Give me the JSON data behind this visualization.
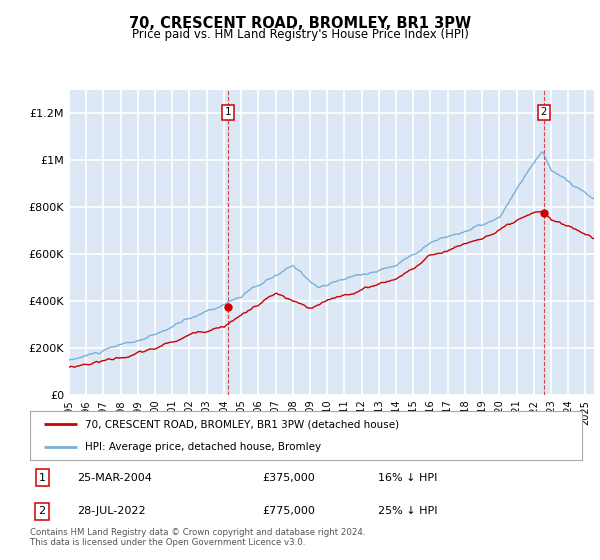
{
  "title": "70, CRESCENT ROAD, BROMLEY, BR1 3PW",
  "subtitle": "Price paid vs. HM Land Registry's House Price Index (HPI)",
  "ylim": [
    0,
    1300000
  ],
  "xlim_start": 1995.0,
  "xlim_end": 2025.5,
  "bg_color": "#dce8f5",
  "red_line_color": "#cc0000",
  "blue_line_color": "#7ab0d8",
  "grid_color": "#ffffff",
  "sale1_x": 2004.23,
  "sale1_y": 375000,
  "sale2_x": 2022.58,
  "sale2_y": 775000,
  "legend_label1": "70, CRESCENT ROAD, BROMLEY, BR1 3PW (detached house)",
  "legend_label2": "HPI: Average price, detached house, Bromley",
  "ann1_label": "1",
  "ann2_label": "2",
  "table_row1": [
    "1",
    "25-MAR-2004",
    "£375,000",
    "16% ↓ HPI"
  ],
  "table_row2": [
    "2",
    "28-JUL-2022",
    "£775,000",
    "25% ↓ HPI"
  ],
  "footer": "Contains HM Land Registry data © Crown copyright and database right 2024.\nThis data is licensed under the Open Government Licence v3.0.",
  "yticks": [
    0,
    200000,
    400000,
    600000,
    800000,
    1000000,
    1200000
  ],
  "ytick_labels": [
    "£0",
    "£200K",
    "£400K",
    "£600K",
    "£800K",
    "£1M",
    "£1.2M"
  ],
  "xticks": [
    1995,
    1996,
    1997,
    1998,
    1999,
    2000,
    2001,
    2002,
    2003,
    2004,
    2005,
    2006,
    2007,
    2008,
    2009,
    2010,
    2011,
    2012,
    2013,
    2014,
    2015,
    2016,
    2017,
    2018,
    2019,
    2020,
    2021,
    2022,
    2023,
    2024,
    2025
  ]
}
